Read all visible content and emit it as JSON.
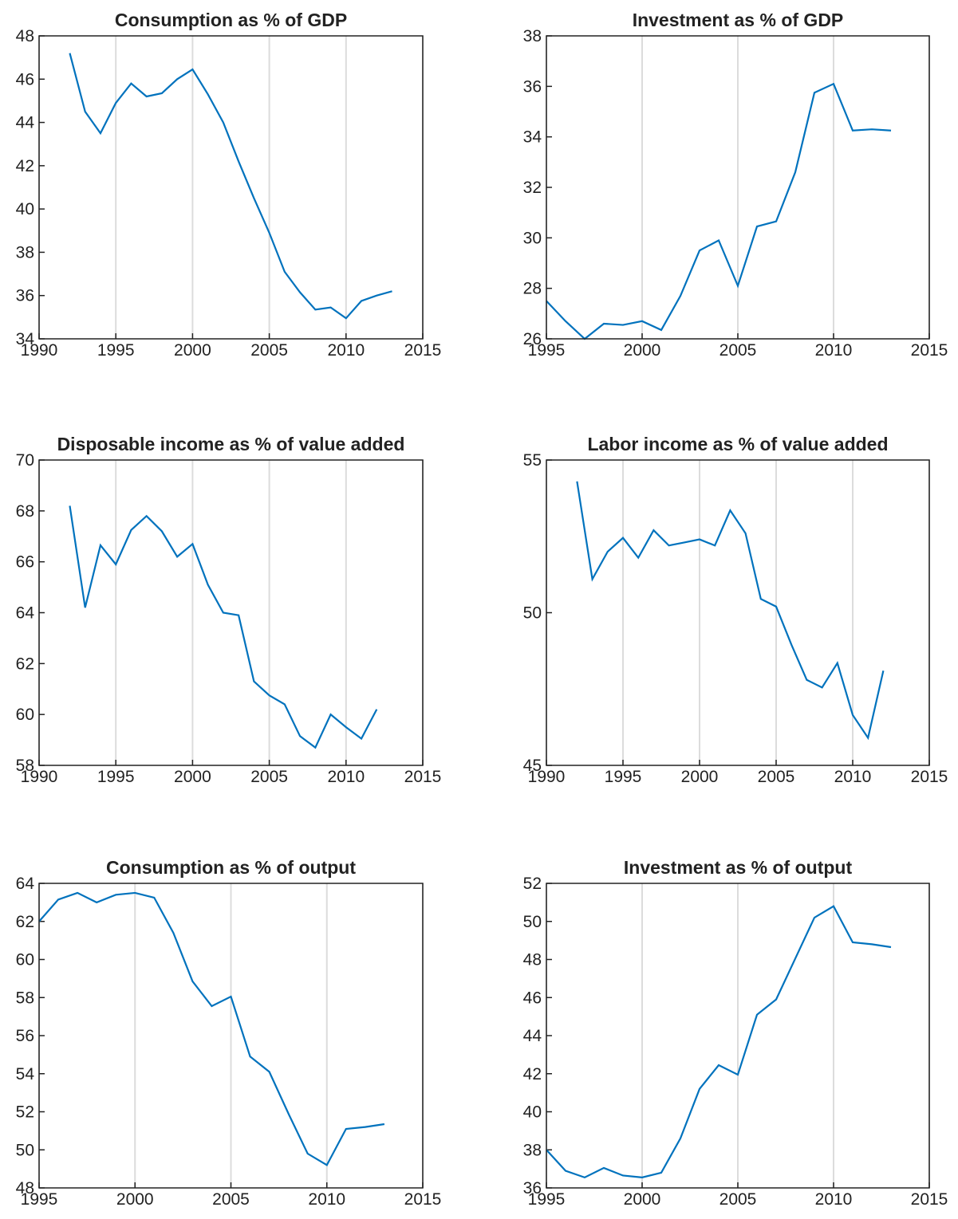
{
  "chart_data": [
    {
      "type": "line",
      "title": "Consumption as % of GDP",
      "color": "#0072bd",
      "grid": "x",
      "x": [
        1992,
        1993,
        1994,
        1995,
        1996,
        1997,
        1998,
        1999,
        2000,
        2001,
        2002,
        2003,
        2004,
        2005,
        2006,
        2007,
        2008,
        2009,
        2010,
        2011,
        2012,
        2013
      ],
      "values": [
        47.2,
        44.5,
        43.5,
        44.9,
        45.8,
        45.2,
        45.35,
        46.0,
        46.45,
        45.3,
        44.0,
        42.2,
        40.5,
        38.9,
        37.1,
        36.15,
        35.35,
        35.45,
        34.95,
        35.75,
        36.0,
        36.2
      ],
      "xlim": [
        1990,
        2015
      ],
      "xticks": [
        1990,
        1995,
        2000,
        2005,
        2010,
        2015
      ],
      "ylim": [
        34,
        48
      ],
      "yticks": [
        34,
        36,
        38,
        40,
        42,
        44,
        46,
        48
      ]
    },
    {
      "type": "line",
      "title": "Investment as % of GDP",
      "color": "#0072bd",
      "grid": "x",
      "x": [
        1995,
        1996,
        1997,
        1998,
        1999,
        2000,
        2001,
        2002,
        2003,
        2004,
        2005,
        2006,
        2007,
        2008,
        2009,
        2010,
        2011,
        2012,
        2013
      ],
      "values": [
        27.5,
        26.7,
        26.0,
        26.6,
        26.55,
        26.7,
        26.35,
        27.7,
        29.5,
        29.9,
        28.1,
        30.45,
        30.65,
        32.6,
        35.75,
        36.1,
        34.25,
        34.3,
        34.25
      ],
      "xlim": [
        1995,
        2015
      ],
      "xticks": [
        1995,
        2000,
        2005,
        2010,
        2015
      ],
      "ylim": [
        26,
        38
      ],
      "yticks": [
        26,
        28,
        30,
        32,
        34,
        36,
        38
      ]
    },
    {
      "type": "line",
      "title": "Disposable income as % of value added",
      "color": "#0072bd",
      "grid": "x",
      "x": [
        1992,
        1993,
        1994,
        1995,
        1996,
        1997,
        1998,
        1999,
        2000,
        2001,
        2002,
        2003,
        2004,
        2005,
        2006,
        2007,
        2008,
        2009,
        2010,
        2011,
        2012
      ],
      "values": [
        68.2,
        64.2,
        66.65,
        65.9,
        67.25,
        67.8,
        67.2,
        66.2,
        66.7,
        65.1,
        64.0,
        63.9,
        61.3,
        60.75,
        60.4,
        59.15,
        58.7,
        60.0,
        59.5,
        59.05,
        60.2
      ],
      "xlim": [
        1990,
        2015
      ],
      "xticks": [
        1990,
        1995,
        2000,
        2005,
        2010,
        2015
      ],
      "ylim": [
        58,
        70
      ],
      "yticks": [
        58,
        60,
        62,
        64,
        66,
        68,
        70
      ]
    },
    {
      "type": "line",
      "title": "Labor income as % of value added",
      "color": "#0072bd",
      "grid": "x",
      "x": [
        1992,
        1993,
        1994,
        1995,
        1996,
        1997,
        1998,
        1999,
        2000,
        2001,
        2002,
        2003,
        2004,
        2005,
        2006,
        2007,
        2008,
        2009,
        2010,
        2011,
        2012
      ],
      "values": [
        54.3,
        51.1,
        52.0,
        52.45,
        51.8,
        52.7,
        52.2,
        52.3,
        52.4,
        52.2,
        53.35,
        52.6,
        50.45,
        50.2,
        48.95,
        47.8,
        47.55,
        48.35,
        46.65,
        45.9,
        48.1
      ],
      "xlim": [
        1990,
        2015
      ],
      "xticks": [
        1990,
        1995,
        2000,
        2005,
        2010,
        2015
      ],
      "ylim": [
        45,
        55
      ],
      "yticks": [
        45,
        50,
        55
      ]
    },
    {
      "type": "line",
      "title": "Consumption as % of output",
      "color": "#0072bd",
      "grid": "x",
      "x": [
        1995,
        1996,
        1997,
        1998,
        1999,
        2000,
        2001,
        2002,
        2003,
        2004,
        2005,
        2006,
        2007,
        2008,
        2009,
        2010,
        2011,
        2012,
        2013
      ],
      "values": [
        62.0,
        63.15,
        63.5,
        63.0,
        63.4,
        63.5,
        63.25,
        61.4,
        58.85,
        57.55,
        58.05,
        54.9,
        54.1,
        51.9,
        49.8,
        49.2,
        51.1,
        51.2,
        51.35
      ],
      "xlim": [
        1995,
        2015
      ],
      "xticks": [
        1995,
        2000,
        2005,
        2010,
        2015
      ],
      "ylim": [
        48,
        64
      ],
      "yticks": [
        48,
        50,
        52,
        54,
        56,
        58,
        60,
        62,
        64
      ]
    },
    {
      "type": "line",
      "title": "Investment as % of output",
      "color": "#0072bd",
      "grid": "x",
      "x": [
        1995,
        1996,
        1997,
        1998,
        1999,
        2000,
        2001,
        2002,
        2003,
        2004,
        2005,
        2006,
        2007,
        2008,
        2009,
        2010,
        2011,
        2012,
        2013
      ],
      "values": [
        38.0,
        36.9,
        36.55,
        37.05,
        36.65,
        36.55,
        36.8,
        38.6,
        41.2,
        42.45,
        41.95,
        45.1,
        45.9,
        48.05,
        50.2,
        50.8,
        48.9,
        48.8,
        48.65
      ],
      "xlim": [
        1995,
        2015
      ],
      "xticks": [
        1995,
        2000,
        2005,
        2010,
        2015
      ],
      "ylim": [
        36,
        52
      ],
      "yticks": [
        36,
        38,
        40,
        42,
        44,
        46,
        48,
        50,
        52
      ]
    }
  ]
}
